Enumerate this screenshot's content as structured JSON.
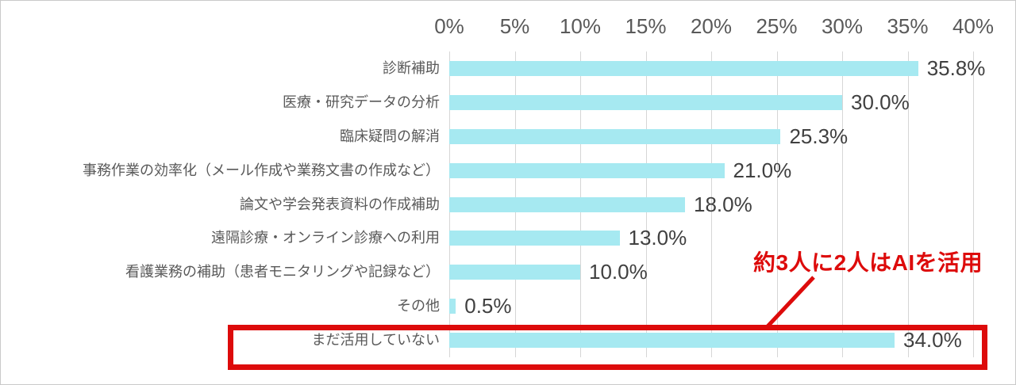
{
  "chart_data": {
    "type": "bar",
    "orientation": "horizontal",
    "categories": [
      "診断補助",
      "医療・研究データの分析",
      "臨床疑問の解消",
      "事務作業の効率化（メール作成や業務文書の作成など）",
      "論文や学会発表資料の作成補助",
      "遠隔診療・オンライン診療への利用",
      "看護業務の補助（患者モニタリングや記録など）",
      "その他",
      "まだ活用していない"
    ],
    "values": [
      35.8,
      30.0,
      25.3,
      21.0,
      18.0,
      13.0,
      10.0,
      0.5,
      34.0
    ],
    "value_labels": [
      "35.8%",
      "30.0%",
      "25.3%",
      "21.0%",
      "18.0%",
      "13.0%",
      "10.0%",
      "0.5%",
      "34.0%"
    ],
    "x_axis": {
      "position": "top",
      "min": 0,
      "max": 40,
      "ticks": [
        "0%",
        "5%",
        "10%",
        "15%",
        "20%",
        "25%",
        "30%",
        "35%",
        "40%"
      ]
    },
    "grid": true,
    "legend": "none",
    "colors": {
      "bar": "#a6e9f1",
      "grid": "#d6d6d6",
      "axis_labels": "#595959",
      "category_labels": "#595959",
      "value_labels": "#404040",
      "highlight": "#dd0b0b"
    }
  },
  "annotation": {
    "text": "約3人に2人はAIを活用",
    "highlighted_category": "まだ活用していない"
  }
}
